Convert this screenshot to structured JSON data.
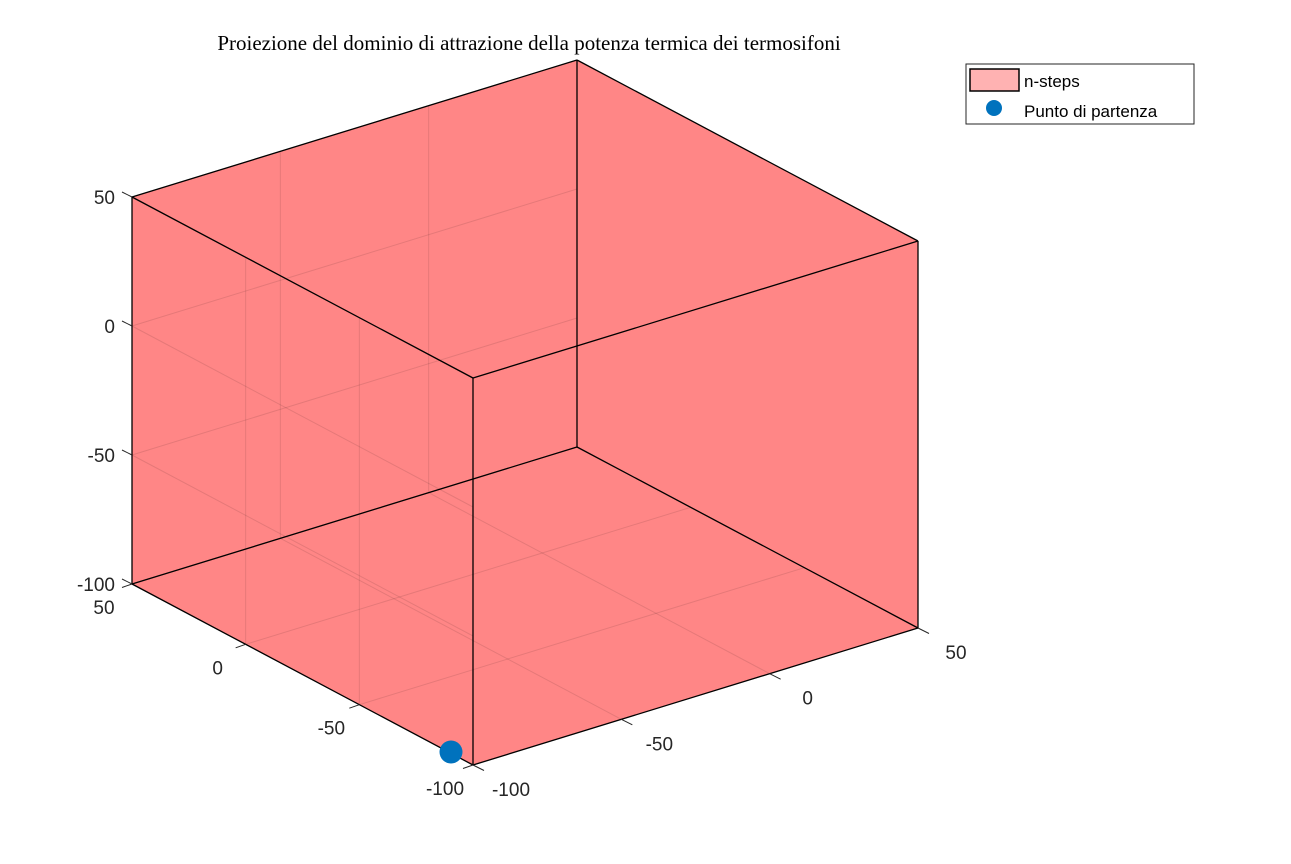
{
  "chart_data": {
    "type": "scatter3d",
    "title": "Proiezione del dominio di attrazione della potenza termica dei termosifoni",
    "xlabel": "",
    "ylabel": "",
    "zlabel": "",
    "xlim": [
      -100,
      50
    ],
    "ylim": [
      -100,
      50
    ],
    "zlim": [
      -100,
      50
    ],
    "xticks": [
      -100,
      -50,
      0,
      50
    ],
    "yticks": [
      -100,
      -50,
      0,
      50
    ],
    "zticks": [
      -100,
      -50,
      0,
      50
    ],
    "grid": true,
    "legend_placement": "top-right",
    "series": [
      {
        "name": "n-steps",
        "kind": "box",
        "color": "#ff0000",
        "alpha": 0.5,
        "bounds": {
          "x": [
            -100,
            50
          ],
          "y": [
            -100,
            50
          ],
          "z": [
            -100,
            50
          ]
        }
      },
      {
        "name": "Punto di partenza",
        "kind": "point",
        "color": "#0072bd",
        "points": [
          {
            "x": -100,
            "y": -100,
            "z": -100
          }
        ]
      }
    ]
  }
}
